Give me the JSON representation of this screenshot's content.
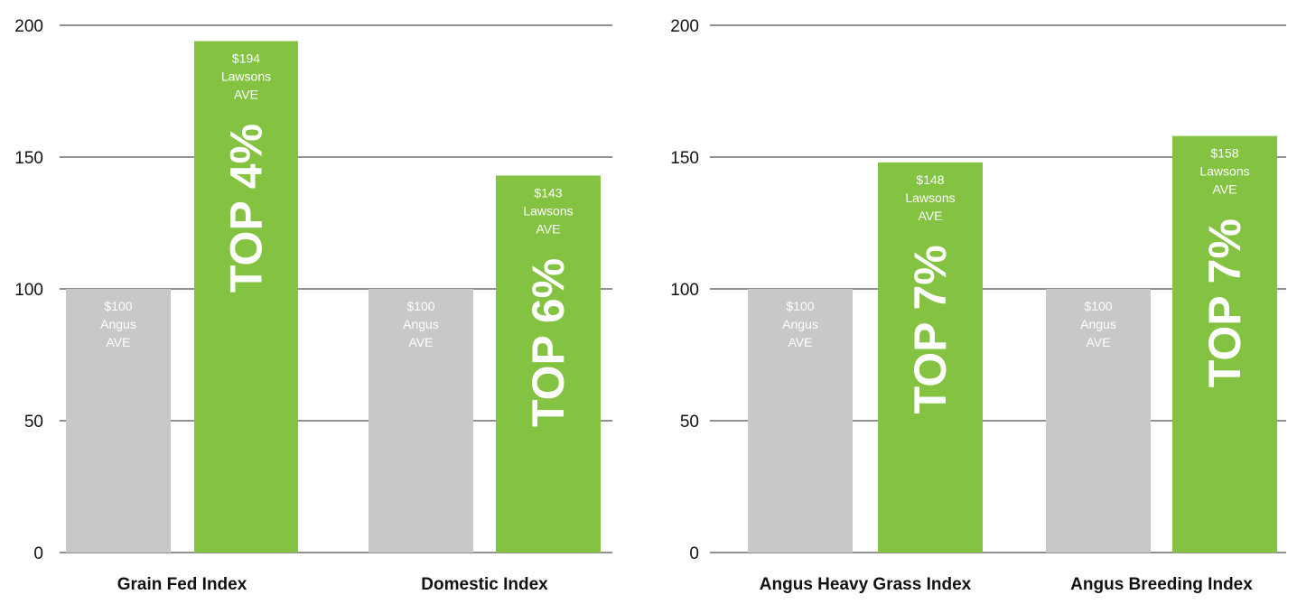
{
  "chart_data": [
    {
      "type": "bar",
      "ylim": [
        0,
        200
      ],
      "yticks": [
        0,
        50,
        100,
        150,
        200
      ],
      "grid": true,
      "categories": [
        "Grain Fed Index",
        "Domestic Index"
      ],
      "series": [
        {
          "name": "Angus AVE",
          "color": "#c8c8ca",
          "values": [
            100,
            100
          ]
        },
        {
          "name": "Lawsons AVE",
          "color": "#83c341",
          "values": [
            194,
            143
          ]
        }
      ],
      "bar_labels": [
        [
          [
            "$100",
            "Angus",
            "AVE"
          ],
          [
            "$194",
            "Lawsons",
            "AVE"
          ]
        ],
        [
          [
            "$100",
            "Angus",
            "AVE"
          ],
          [
            "$143",
            "Lawsons",
            "AVE"
          ]
        ]
      ],
      "annotations": [
        {
          "text": "TOP 4%",
          "category": 0,
          "series": 1
        },
        {
          "text": "TOP 6%",
          "category": 1,
          "series": 1
        }
      ]
    },
    {
      "type": "bar",
      "ylim": [
        0,
        200
      ],
      "yticks": [
        0,
        50,
        100,
        150,
        200
      ],
      "grid": true,
      "categories": [
        "Angus Heavy Grass Index",
        "Angus Breeding Index"
      ],
      "series": [
        {
          "name": "Angus AVE",
          "color": "#c8c8ca",
          "values": [
            100,
            100
          ]
        },
        {
          "name": "Lawsons AVE",
          "color": "#83c341",
          "values": [
            148,
            158
          ]
        }
      ],
      "bar_labels": [
        [
          [
            "$100",
            "Angus",
            "AVE"
          ],
          [
            "$148",
            "Lawsons",
            "AVE"
          ]
        ],
        [
          [
            "$100",
            "Angus",
            "AVE"
          ],
          [
            "$158",
            "Lawsons",
            "AVE"
          ]
        ]
      ],
      "annotations": [
        {
          "text": "TOP 7%",
          "category": 0,
          "series": 1
        },
        {
          "text": "TOP 7%",
          "category": 1,
          "series": 1
        }
      ]
    }
  ]
}
